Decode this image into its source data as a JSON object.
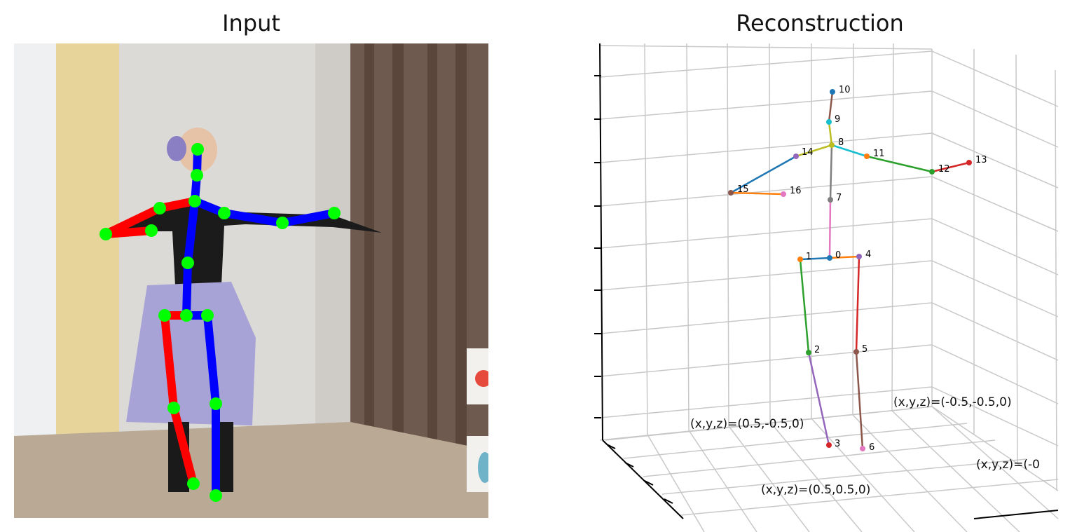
{
  "panels": {
    "input_title": "Input",
    "reconstruction_title": "Reconstruction"
  },
  "photo": {
    "description_icon": "person-photo",
    "left_limb_color": "#ff0000",
    "right_limb_color": "#0000ff",
    "joint_color": "#00ff00"
  },
  "reconstruction": {
    "joint_labels": [
      "0",
      "1",
      "2",
      "3",
      "4",
      "5",
      "6",
      "7",
      "8",
      "9",
      "10",
      "11",
      "12",
      "13",
      "14",
      "15",
      "16"
    ],
    "corner_labels": [
      "(x,y,z)=(0.5,-0.5,0)",
      "(x,y,z)=(-0.5,-0.5,0)",
      "(x,y,z)=(0.5,0.5,0)",
      "(x,y,z)=(-0"
    ],
    "bone_colors": [
      "#1f77b4",
      "#ff7f0e",
      "#2ca02c",
      "#d62728",
      "#9467bd",
      "#8c564b",
      "#e377c2",
      "#7f7f7f",
      "#bcbd22",
      "#17becf"
    ],
    "grid_color": "#c8c8c8"
  }
}
